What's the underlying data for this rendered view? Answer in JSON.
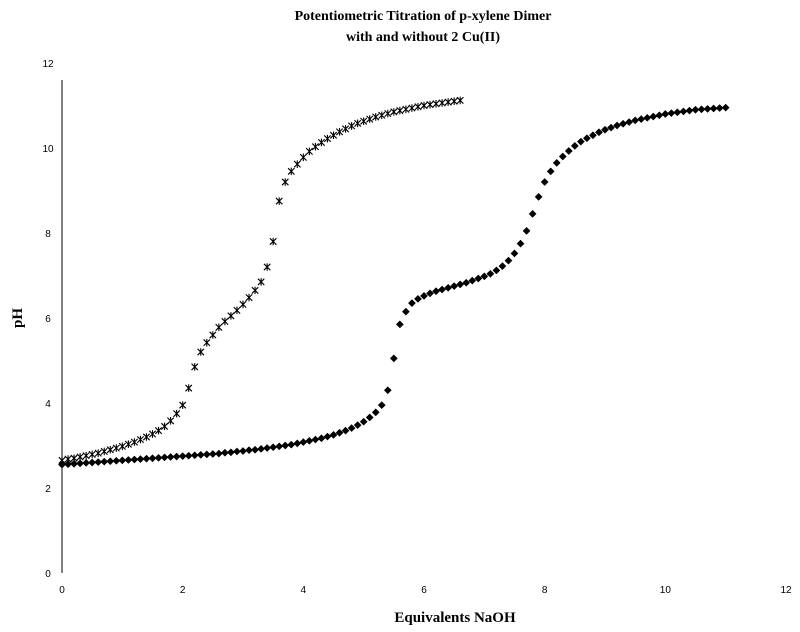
{
  "chart_data": {
    "type": "scatter",
    "title": "Potentiometric Titration of p-xylene  Dimer",
    "subtitle": "with and without 2 Cu(II)",
    "xlabel": "Equivalents NaOH",
    "ylabel": "pH",
    "xlim": [
      0,
      12
    ],
    "ylim": [
      0,
      12
    ],
    "x_ticks": [
      "0",
      "2",
      "4",
      "6",
      "8",
      "10",
      "12"
    ],
    "y_ticks": [
      "0",
      "2",
      "4",
      "6",
      "8",
      "10",
      "12"
    ],
    "grid": false,
    "legend": "none",
    "series": [
      {
        "marker": "star",
        "color": "#000000",
        "x": [
          0.0,
          0.1,
          0.2,
          0.3,
          0.4,
          0.5,
          0.6,
          0.7,
          0.8,
          0.9,
          1.0,
          1.1,
          1.2,
          1.3,
          1.4,
          1.5,
          1.6,
          1.7,
          1.8,
          1.9,
          2.0,
          2.1,
          2.2,
          2.3,
          2.4,
          2.5,
          2.6,
          2.7,
          2.8,
          2.9,
          3.0,
          3.1,
          3.2,
          3.3,
          3.4,
          3.5,
          3.6,
          3.7,
          3.8,
          3.9,
          4.0,
          4.1,
          4.2,
          4.3,
          4.4,
          4.5,
          4.6,
          4.7,
          4.8,
          4.9,
          5.0,
          5.1,
          5.2,
          5.3,
          5.4,
          5.5,
          5.6,
          5.7,
          5.8,
          5.9,
          6.0,
          6.1,
          6.2,
          6.3,
          6.4,
          6.5,
          6.6
        ],
        "y": [
          2.65,
          2.68,
          2.7,
          2.73,
          2.76,
          2.79,
          2.82,
          2.86,
          2.9,
          2.94,
          2.98,
          3.03,
          3.08,
          3.14,
          3.2,
          3.27,
          3.35,
          3.45,
          3.58,
          3.75,
          3.95,
          4.35,
          4.85,
          5.2,
          5.42,
          5.6,
          5.78,
          5.92,
          6.05,
          6.18,
          6.32,
          6.48,
          6.65,
          6.85,
          7.2,
          7.8,
          8.75,
          9.2,
          9.45,
          9.62,
          9.78,
          9.92,
          10.03,
          10.13,
          10.22,
          10.3,
          10.38,
          10.45,
          10.52,
          10.58,
          10.63,
          10.68,
          10.73,
          10.77,
          10.81,
          10.85,
          10.88,
          10.91,
          10.94,
          10.97,
          11.0,
          11.02,
          11.04,
          11.06,
          11.08,
          11.1,
          11.12
        ]
      },
      {
        "marker": "diamond",
        "color": "#000000",
        "x": [
          0.0,
          0.1,
          0.2,
          0.3,
          0.4,
          0.5,
          0.6,
          0.7,
          0.8,
          0.9,
          1.0,
          1.1,
          1.2,
          1.3,
          1.4,
          1.5,
          1.6,
          1.7,
          1.8,
          1.9,
          2.0,
          2.1,
          2.2,
          2.3,
          2.4,
          2.5,
          2.6,
          2.7,
          2.8,
          2.9,
          3.0,
          3.1,
          3.2,
          3.3,
          3.4,
          3.5,
          3.6,
          3.7,
          3.8,
          3.9,
          4.0,
          4.1,
          4.2,
          4.3,
          4.4,
          4.5,
          4.6,
          4.7,
          4.8,
          4.9,
          5.0,
          5.1,
          5.2,
          5.3,
          5.4,
          5.5,
          5.6,
          5.7,
          5.8,
          5.9,
          6.0,
          6.1,
          6.2,
          6.3,
          6.4,
          6.5,
          6.6,
          6.7,
          6.8,
          6.9,
          7.0,
          7.1,
          7.2,
          7.3,
          7.4,
          7.5,
          7.6,
          7.7,
          7.8,
          7.9,
          8.0,
          8.1,
          8.2,
          8.3,
          8.4,
          8.5,
          8.6,
          8.7,
          8.8,
          8.9,
          9.0,
          9.1,
          9.2,
          9.3,
          9.4,
          9.5,
          9.6,
          9.7,
          9.8,
          9.9,
          10.0,
          10.1,
          10.2,
          10.3,
          10.4,
          10.5,
          10.6,
          10.7,
          10.8,
          10.9,
          11.0
        ],
        "y": [
          2.55,
          2.56,
          2.57,
          2.58,
          2.59,
          2.6,
          2.61,
          2.62,
          2.63,
          2.64,
          2.65,
          2.66,
          2.67,
          2.68,
          2.69,
          2.7,
          2.71,
          2.72,
          2.73,
          2.74,
          2.75,
          2.76,
          2.77,
          2.78,
          2.79,
          2.8,
          2.81,
          2.83,
          2.84,
          2.86,
          2.87,
          2.89,
          2.9,
          2.92,
          2.94,
          2.96,
          2.98,
          3.0,
          3.02,
          3.05,
          3.08,
          3.11,
          3.14,
          3.17,
          3.21,
          3.25,
          3.3,
          3.35,
          3.41,
          3.48,
          3.56,
          3.66,
          3.78,
          3.95,
          4.3,
          5.05,
          5.85,
          6.15,
          6.35,
          6.45,
          6.52,
          6.58,
          6.63,
          6.67,
          6.71,
          6.75,
          6.79,
          6.83,
          6.88,
          6.93,
          6.98,
          7.04,
          7.12,
          7.22,
          7.35,
          7.52,
          7.75,
          8.05,
          8.45,
          8.85,
          9.2,
          9.45,
          9.65,
          9.8,
          9.93,
          10.05,
          10.15,
          10.23,
          10.3,
          10.37,
          10.43,
          10.48,
          10.53,
          10.57,
          10.61,
          10.65,
          10.68,
          10.71,
          10.74,
          10.77,
          10.8,
          10.82,
          10.84,
          10.86,
          10.88,
          10.9,
          10.91,
          10.92,
          10.93,
          10.94,
          10.95
        ]
      }
    ]
  }
}
